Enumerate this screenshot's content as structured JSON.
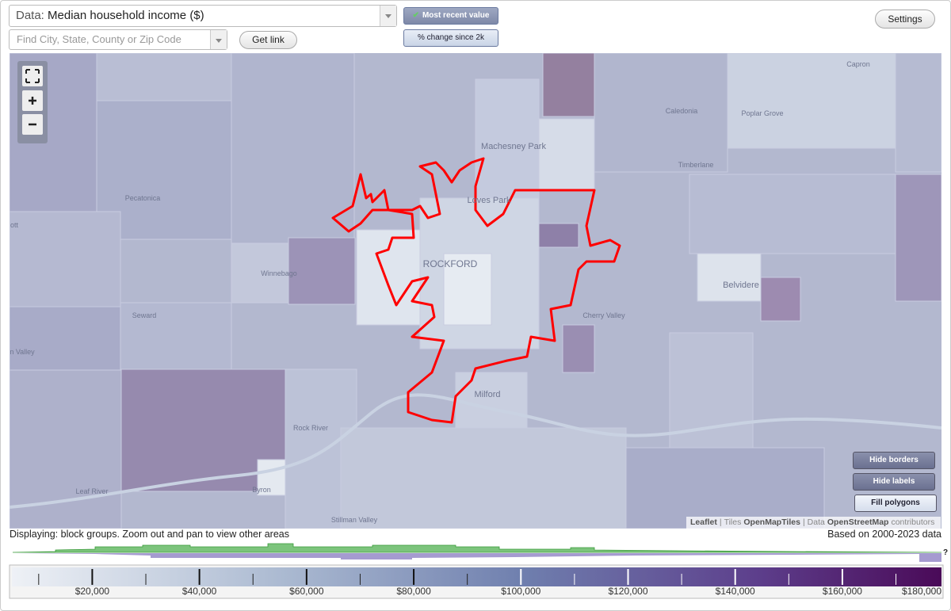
{
  "header": {
    "data_label": "Data:",
    "data_value": "Median household income ($)",
    "search_placeholder": "Find City, State, County or Zip Code",
    "get_link": "Get link",
    "toggle": [
      "Most recent value",
      "% change since 2k"
    ],
    "settings": "Settings"
  },
  "map": {
    "labels": [
      "Capron",
      "Caledonia",
      "Poplar Grove",
      "Machesney Park",
      "Timberlane",
      "Pecatonica",
      "ott",
      "Loves Park",
      "Winnebago",
      "ROCKFORD",
      "Belvidere",
      "Seward",
      "Cherry Valley",
      "n Valley",
      "Milford",
      "Rock River",
      "Leaf River",
      "Byron",
      "Stillman Valley"
    ],
    "controls": [
      "Hide borders",
      "Hide labels",
      "Fill polygons"
    ],
    "attribution": [
      "Leaflet",
      "|",
      "Tiles",
      "OpenMapTiles",
      "|",
      "Data",
      "OpenStreetMap",
      "contributors"
    ]
  },
  "footer": {
    "displaying": "Displaying: block groups. Zoom out and pan to view other areas",
    "based_on": "Based on 2000-2023 data",
    "help": "?"
  },
  "legend": {
    "range": [
      5000,
      178500
    ],
    "ticks": [
      {
        "value": 20000,
        "label": "$20,000"
      },
      {
        "value": 40000,
        "label": "$40,000"
      },
      {
        "value": 60000,
        "label": "$60,000"
      },
      {
        "value": 80000,
        "label": "$80,000"
      },
      {
        "value": 100000,
        "label": "$100,000"
      },
      {
        "value": 120000,
        "label": "$120,000"
      },
      {
        "value": 140000,
        "label": "$140,000"
      },
      {
        "value": 160000,
        "label": "$160,000"
      },
      {
        "value": 180000,
        "label": "$180,000"
      }
    ],
    "minor_ticks": [
      10000,
      30000,
      50000,
      70000,
      90000,
      110000,
      130000,
      150000,
      170000
    ]
  }
}
